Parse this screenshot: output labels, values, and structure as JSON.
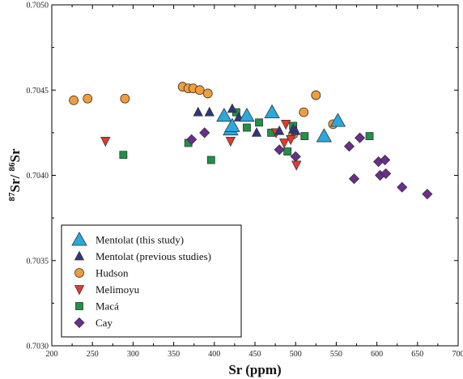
{
  "chart_data": {
    "type": "scatter",
    "xlabel": "Sr (ppm)",
    "ylabel": {
      "sup1": "87",
      "main1": "Sr/ ",
      "sup2": "86",
      "main2": "Sr"
    },
    "xlim": [
      200,
      700
    ],
    "ylim": [
      0.703,
      0.705
    ],
    "xticks": [
      "200",
      "250",
      "300",
      "350",
      "400",
      "450",
      "500",
      "550",
      "600",
      "650",
      "700"
    ],
    "yticks": [
      "0.7030",
      "0.7035",
      "0.7040",
      "0.7045",
      "0.7050"
    ],
    "grid": false,
    "legend_position": "bottom-left",
    "series": [
      {
        "name": "Mentolat (this study)",
        "marker": "triangle-up-large",
        "color": "#29a9df",
        "points": [
          [
            412,
            0.70435
          ],
          [
            420,
            0.70427
          ],
          [
            422,
            0.70429
          ],
          [
            440,
            0.70435
          ],
          [
            471,
            0.70437
          ],
          [
            535,
            0.70423
          ],
          [
            552,
            0.70432
          ]
        ]
      },
      {
        "name": "Mentolat (previous studies)",
        "marker": "triangle-up",
        "color": "#2f3680",
        "points": [
          [
            380,
            0.70437
          ],
          [
            394,
            0.70437
          ],
          [
            422,
            0.70439
          ],
          [
            430,
            0.70434
          ],
          [
            452,
            0.70425
          ],
          [
            480,
            0.70426
          ],
          [
            497,
            0.70427
          ],
          [
            500,
            0.70426
          ]
        ]
      },
      {
        "name": "Hudson",
        "marker": "circle",
        "color": "#f39c3b",
        "points": [
          [
            227,
            0.70444
          ],
          [
            244,
            0.70445
          ],
          [
            290,
            0.70445
          ],
          [
            361,
            0.70452
          ],
          [
            368,
            0.70451
          ],
          [
            374,
            0.70451
          ],
          [
            382,
            0.7045
          ],
          [
            392,
            0.70448
          ],
          [
            497,
            0.70424
          ],
          [
            510,
            0.70437
          ],
          [
            525,
            0.70447
          ],
          [
            546,
            0.7043
          ]
        ]
      },
      {
        "name": "Melimoyu",
        "marker": "triangle-down",
        "color": "#e8382b",
        "points": [
          [
            266,
            0.7042
          ],
          [
            420,
            0.7042
          ],
          [
            476,
            0.70425
          ],
          [
            486,
            0.70419
          ],
          [
            488,
            0.7043
          ],
          [
            494,
            0.70421
          ],
          [
            501,
            0.70406
          ]
        ]
      },
      {
        "name": "Macá",
        "marker": "square",
        "color": "#1f9245",
        "points": [
          [
            288,
            0.70412
          ],
          [
            368,
            0.70419
          ],
          [
            396,
            0.70409
          ],
          [
            427,
            0.70437
          ],
          [
            440,
            0.70428
          ],
          [
            455,
            0.70431
          ],
          [
            470,
            0.70425
          ],
          [
            490,
            0.70414
          ],
          [
            497,
            0.70429
          ],
          [
            511,
            0.70423
          ],
          [
            591,
            0.70423
          ]
        ]
      },
      {
        "name": "Cay",
        "marker": "diamond",
        "color": "#6c2d8e",
        "points": [
          [
            372,
            0.70421
          ],
          [
            388,
            0.70425
          ],
          [
            480,
            0.70415
          ],
          [
            500,
            0.70411
          ],
          [
            566,
            0.70417
          ],
          [
            572,
            0.70398
          ],
          [
            579,
            0.70422
          ],
          [
            602,
            0.70408
          ],
          [
            604,
            0.704
          ],
          [
            610,
            0.70409
          ],
          [
            611,
            0.70401
          ],
          [
            631,
            0.70393
          ],
          [
            662,
            0.70389
          ]
        ]
      }
    ]
  }
}
